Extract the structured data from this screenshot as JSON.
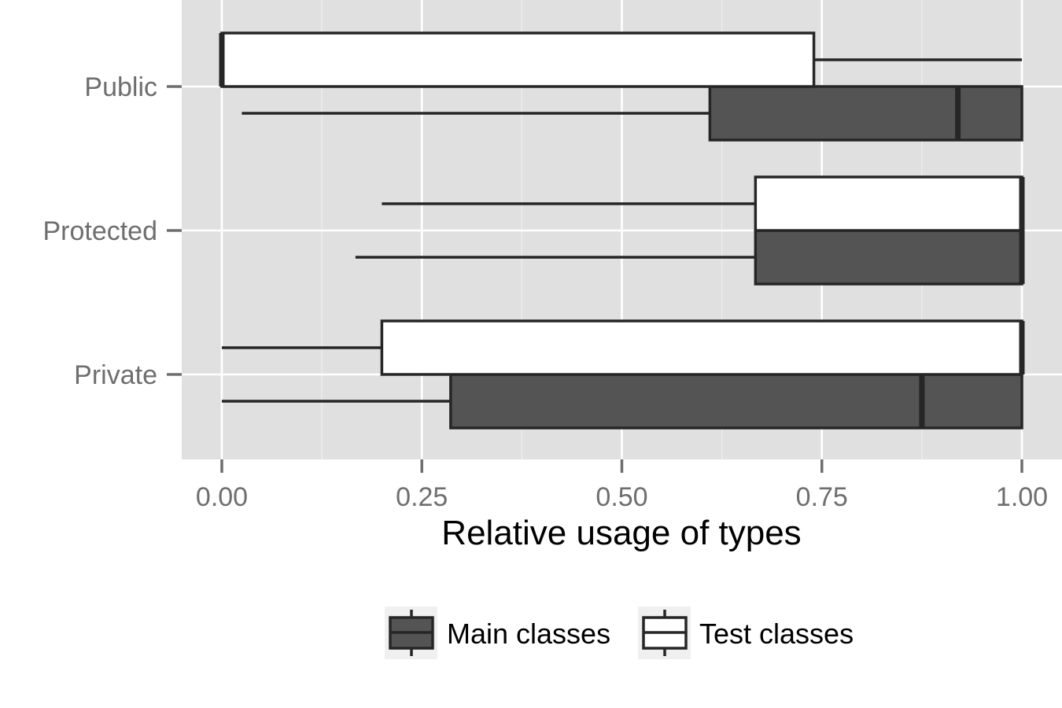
{
  "chart_data": {
    "type": "boxplot",
    "orientation": "horizontal",
    "xlabel": "Relative usage of types",
    "ylabel": "",
    "xlim": [
      -0.05,
      1.05
    ],
    "x_ticks": [
      "0.00",
      "0.25",
      "0.50",
      "0.75",
      "1.00"
    ],
    "categories": [
      "Public",
      "Protected",
      "Private"
    ],
    "grid": true,
    "legend_position": "bottom",
    "colors": {
      "panel": "#e0e0e0",
      "grid": "#ffffff",
      "main_fill": "#545454",
      "test_fill": "#ffffff",
      "outline": "#262626"
    },
    "series": [
      {
        "name": "Main classes",
        "fill": "#545454",
        "boxes": [
          {
            "category": "Public",
            "whisker_low": 0.025,
            "q1": 0.61,
            "median": 0.92,
            "q3": 1.0,
            "whisker_high": 1.0
          },
          {
            "category": "Protected",
            "whisker_low": 0.167,
            "q1": 0.667,
            "median": 1.0,
            "q3": 1.0,
            "whisker_high": 1.0
          },
          {
            "category": "Private",
            "whisker_low": 0.0,
            "q1": 0.286,
            "median": 0.875,
            "q3": 1.0,
            "whisker_high": 1.0
          }
        ]
      },
      {
        "name": "Test classes",
        "fill": "#ffffff",
        "boxes": [
          {
            "category": "Public",
            "whisker_low": 0.0,
            "q1": 0.0,
            "median": 0.0,
            "q3": 0.74,
            "whisker_high": 1.0
          },
          {
            "category": "Protected",
            "whisker_low": 0.2,
            "q1": 0.667,
            "median": 1.0,
            "q3": 1.0,
            "whisker_high": 1.0
          },
          {
            "category": "Private",
            "whisker_low": 0.0,
            "q1": 0.2,
            "median": 1.0,
            "q3": 1.0,
            "whisker_high": 1.0
          }
        ]
      }
    ]
  }
}
